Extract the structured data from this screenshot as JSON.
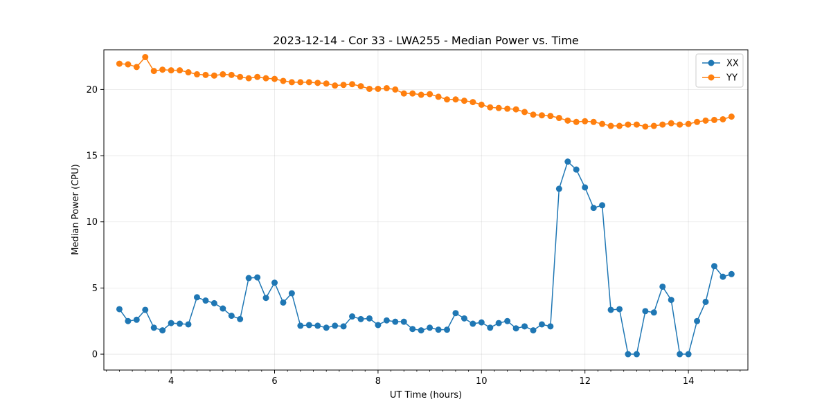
{
  "chart_data": {
    "type": "line",
    "title": "2023-12-14 - Cor 33 - LWA255 - Median Power vs. Time",
    "xlabel": "UT Time (hours)",
    "ylabel": "Median Power (CPU)",
    "xlim": [
      2.7,
      15.15
    ],
    "ylim": [
      -1.2,
      23.0
    ],
    "xticks": [
      4,
      6,
      8,
      10,
      12,
      14
    ],
    "xtick_labels": [
      "4",
      "6",
      "8",
      "10",
      "12",
      "14"
    ],
    "yticks": [
      0,
      5,
      10,
      15,
      20
    ],
    "ytick_labels": [
      "0",
      "5",
      "10",
      "15",
      "20"
    ],
    "grid": true,
    "legend_position": "top-right",
    "x": [
      3.0,
      3.167,
      3.333,
      3.5,
      3.667,
      3.833,
      4.0,
      4.167,
      4.333,
      4.5,
      4.667,
      4.833,
      5.0,
      5.167,
      5.333,
      5.5,
      5.667,
      5.833,
      6.0,
      6.167,
      6.333,
      6.5,
      6.667,
      6.833,
      7.0,
      7.167,
      7.333,
      7.5,
      7.667,
      7.833,
      8.0,
      8.167,
      8.333,
      8.5,
      8.667,
      8.833,
      9.0,
      9.167,
      9.333,
      9.5,
      9.667,
      9.833,
      10.0,
      10.167,
      10.333,
      10.5,
      10.667,
      10.833,
      11.0,
      11.167,
      11.333,
      11.5,
      11.667,
      11.833,
      12.0,
      12.167,
      12.333,
      12.5,
      12.667,
      12.833,
      13.0,
      13.167,
      13.333,
      13.5,
      13.667,
      13.833,
      14.0,
      14.167,
      14.333,
      14.5,
      14.667,
      14.833
    ],
    "series": [
      {
        "name": "XX",
        "color": "#1f77b4",
        "values": [
          3.4,
          2.5,
          2.6,
          3.35,
          2.0,
          1.8,
          2.35,
          2.3,
          2.25,
          4.3,
          4.05,
          3.85,
          3.45,
          2.9,
          2.65,
          5.75,
          5.8,
          4.25,
          5.4,
          3.9,
          4.6,
          2.15,
          2.2,
          2.15,
          2.0,
          2.15,
          2.1,
          2.85,
          2.65,
          2.7,
          2.2,
          2.55,
          2.45,
          2.45,
          1.9,
          1.8,
          2.0,
          1.85,
          1.85,
          3.1,
          2.7,
          2.3,
          2.4,
          2.0,
          2.35,
          2.5,
          1.95,
          2.1,
          1.8,
          2.25,
          2.1,
          12.5,
          14.55,
          13.95,
          12.6,
          11.05,
          11.25,
          3.35,
          3.4,
          0.0,
          0.0,
          3.25,
          3.15,
          5.1,
          4.1,
          0.0,
          0.0,
          2.5,
          3.95,
          6.65,
          5.85,
          6.05
        ]
      },
      {
        "name": "YY",
        "color": "#ff7f0e",
        "values": [
          21.95,
          21.9,
          21.7,
          22.45,
          21.4,
          21.5,
          21.45,
          21.45,
          21.3,
          21.15,
          21.1,
          21.05,
          21.15,
          21.1,
          20.95,
          20.85,
          20.95,
          20.85,
          20.8,
          20.65,
          20.55,
          20.55,
          20.55,
          20.5,
          20.45,
          20.3,
          20.35,
          20.4,
          20.25,
          20.05,
          20.05,
          20.1,
          20.0,
          19.7,
          19.7,
          19.6,
          19.65,
          19.45,
          19.25,
          19.25,
          19.15,
          19.05,
          18.85,
          18.65,
          18.6,
          18.55,
          18.5,
          18.3,
          18.1,
          18.05,
          18.0,
          17.85,
          17.65,
          17.55,
          17.6,
          17.55,
          17.4,
          17.25,
          17.25,
          17.35,
          17.35,
          17.2,
          17.25,
          17.35,
          17.45,
          17.35,
          17.4,
          17.55,
          17.65,
          17.7,
          17.75,
          17.95
        ]
      }
    ]
  }
}
